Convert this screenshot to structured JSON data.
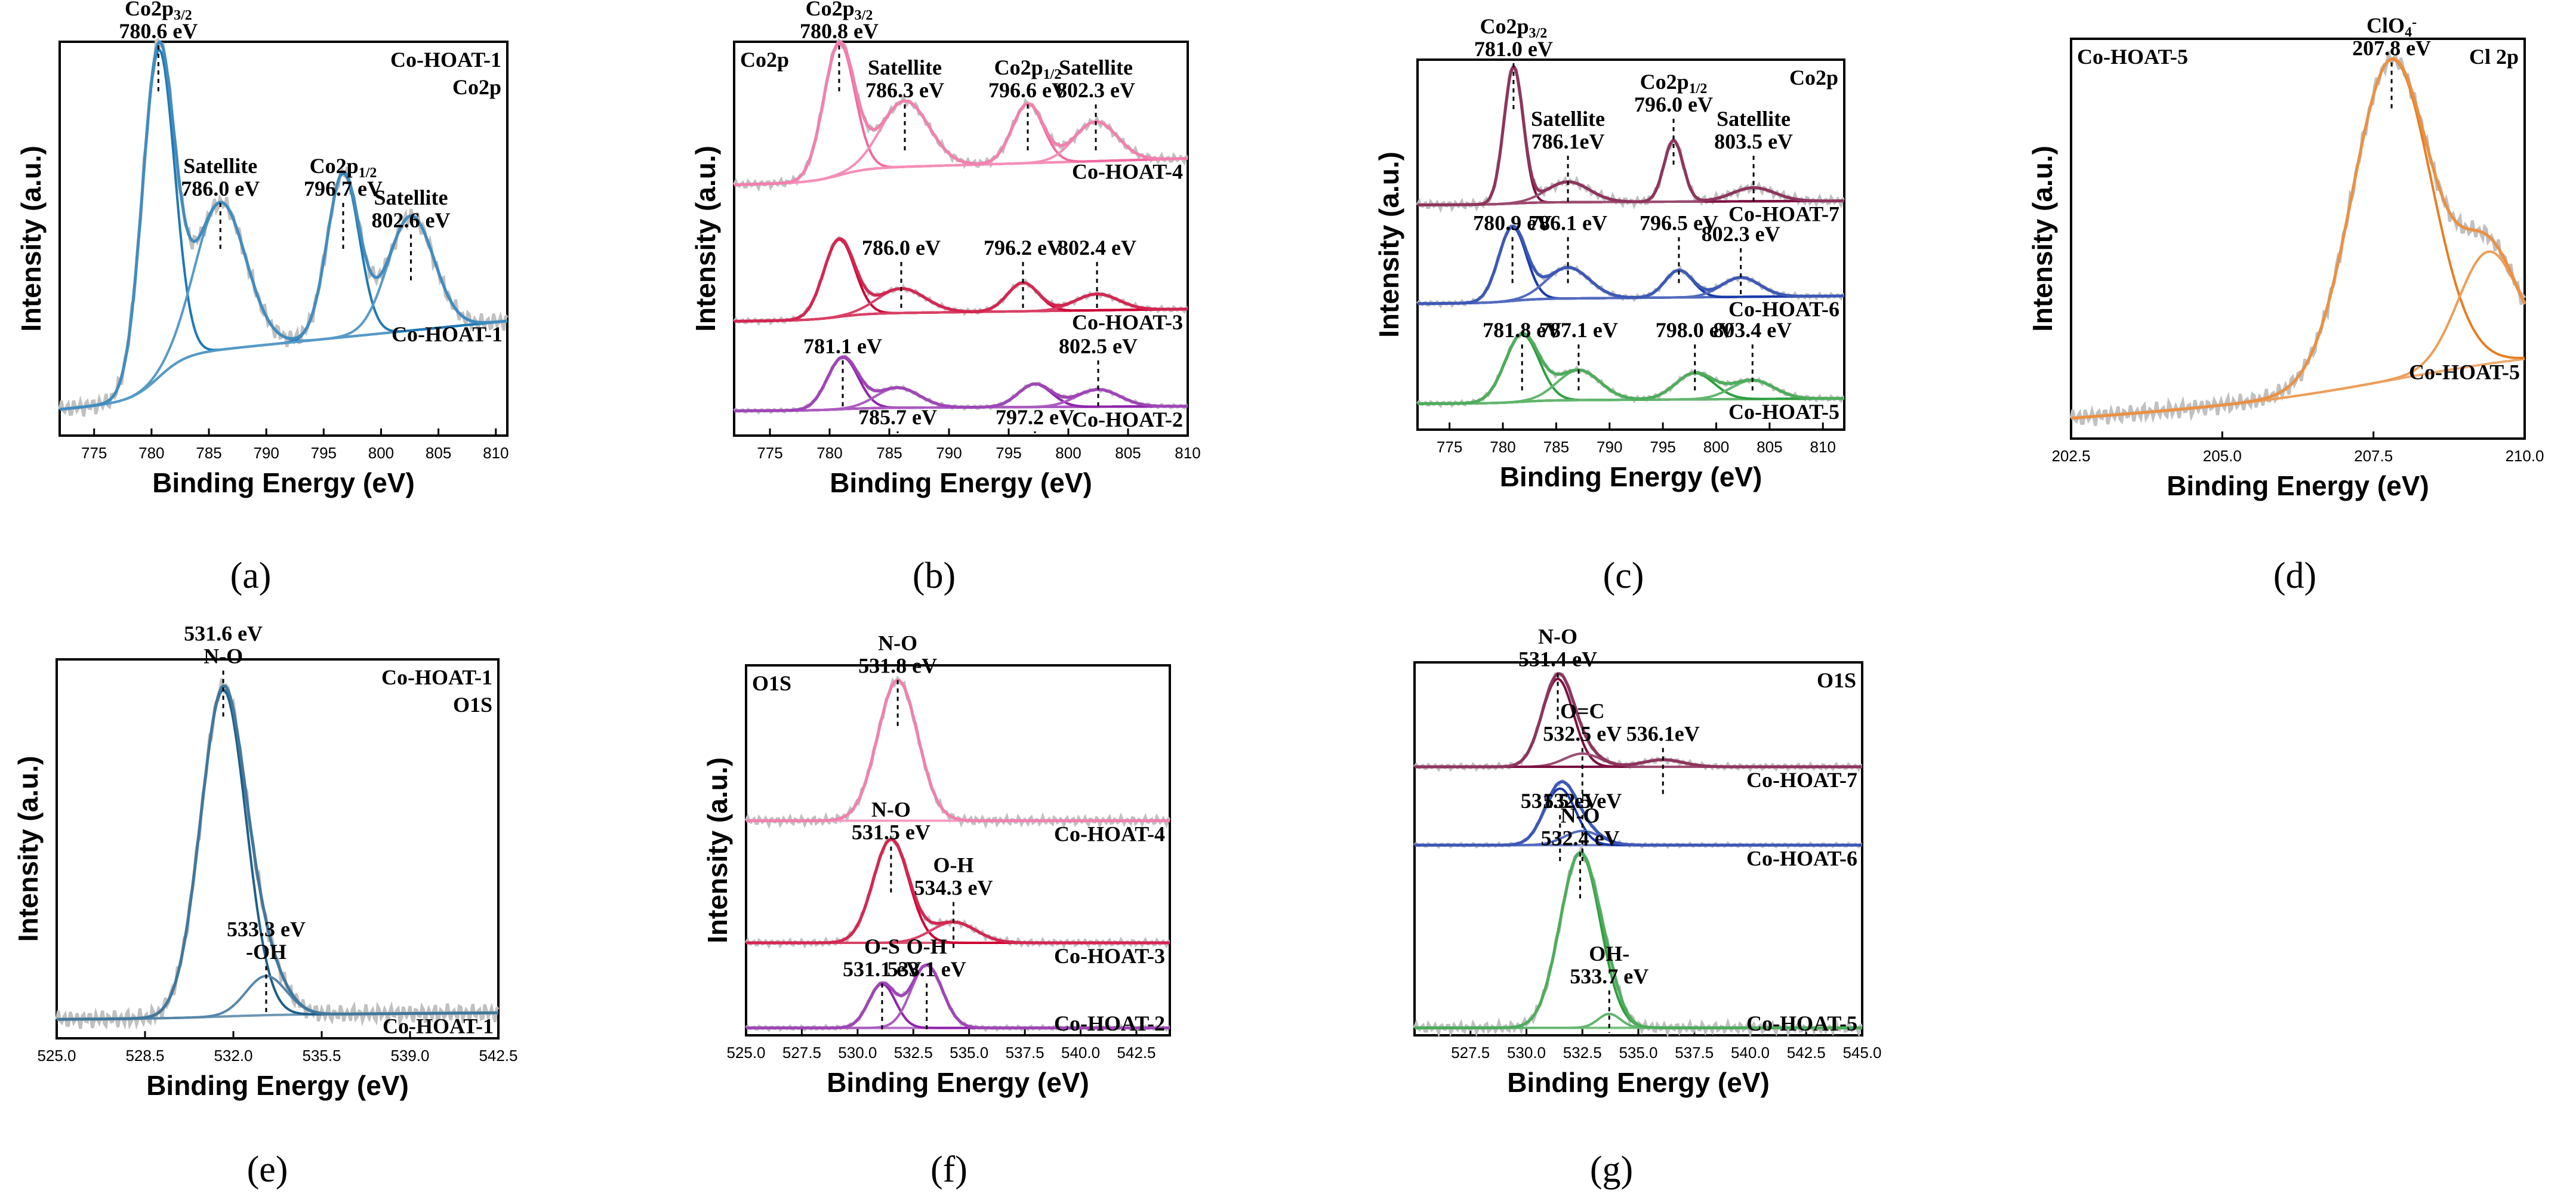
{
  "chart_data": [
    {
      "id": "a",
      "panel_label": "(a)",
      "type": "line",
      "title": "Co2p",
      "xlabel": "Binding Energy (eV)",
      "ylabel": "Intensity (a.u.)",
      "xlim": [
        772,
        811
      ],
      "xticks": [
        775,
        780,
        785,
        790,
        795,
        800,
        805,
        810
      ],
      "series": [
        {
          "name": "Co-HOAT-1",
          "color": "#1f78b4",
          "offset": 0,
          "scale": 1,
          "peaks": [
            [
              780.6,
              1.0,
              1.4
            ],
            [
              786.0,
              0.45,
              2.2
            ],
            [
              796.7,
              0.5,
              1.4
            ],
            [
              802.6,
              0.35,
              2.0
            ]
          ],
          "bg": [
            0.08,
            0.35
          ]
        }
      ],
      "annotations": [
        {
          "x": 780.6,
          "html": "Co2p<sub>3/2</sub>",
          "sub": "780.6 eV",
          "level": 1.0
        },
        {
          "x": 786.0,
          "html": "Satellite",
          "sub": "786.0 eV",
          "level": 0.6
        },
        {
          "x": 796.7,
          "html": "Co2p<sub>1/2</sub>",
          "sub": "796.7 eV",
          "level": 0.6
        },
        {
          "x": 802.6,
          "html": "Satellite",
          "sub": "802.6 eV",
          "level": 0.52
        }
      ],
      "labels": [
        {
          "text": "Co-HOAT-1",
          "color": "#1f78b4",
          "pos": "top-right"
        },
        {
          "text": "Co2p",
          "color": "#000000",
          "pos": "top-right-2"
        }
      ]
    },
    {
      "id": "b",
      "panel_label": "(b)",
      "type": "line",
      "title": "Co2p",
      "xlabel": "Binding Energy (eV)",
      "ylabel": "Intensity (a.u.)",
      "xlim": [
        772,
        810
      ],
      "xticks": [
        775,
        780,
        785,
        790,
        795,
        800,
        805,
        810
      ],
      "series": [
        {
          "name": "Co-HOAT-4",
          "color": "#f06aa0",
          "offset": 0.62,
          "scale": 0.38,
          "peaks": [
            [
              780.8,
              1.0,
              1.3
            ],
            [
              786.3,
              0.5,
              2.0
            ],
            [
              796.6,
              0.45,
              1.3
            ],
            [
              802.3,
              0.3,
              1.8
            ]
          ],
          "bg": [
            0.05,
            0.25
          ]
        },
        {
          "name": "Co-HOAT-3",
          "color": "#cc0033",
          "offset": 0.28,
          "scale": 0.22,
          "peaks": [
            [
              780.8,
              0.95,
              1.3
            ],
            [
              786.0,
              0.3,
              2.0
            ],
            [
              796.2,
              0.35,
              1.3
            ],
            [
              802.4,
              0.2,
              1.8
            ]
          ],
          "bg": [
            0.05,
            0.2
          ]
        },
        {
          "name": "Co-HOAT-2",
          "color": "#8e24aa",
          "offset": 0.06,
          "scale": 0.14,
          "peaks": [
            [
              781.1,
              0.9,
              1.3
            ],
            [
              785.7,
              0.35,
              1.8
            ],
            [
              797.2,
              0.4,
              1.4
            ],
            [
              802.5,
              0.3,
              1.8
            ]
          ],
          "bg": [
            0.02,
            0.1
          ]
        }
      ],
      "annotations": [
        {
          "x": 780.8,
          "html": "Co2p<sub>3/2</sub>",
          "sub": "780.8 eV",
          "level": 1.0
        },
        {
          "x": 786.3,
          "html": "Satellite",
          "sub": "786.3 eV",
          "level": 0.85
        },
        {
          "x": 796.6,
          "html": "Co2p<sub>1/2</sub>",
          "sub": "796.6 eV",
          "level": 0.85
        },
        {
          "x": 802.3,
          "html": "Satellite",
          "sub": "802.3 eV",
          "level": 0.85
        },
        {
          "x": 786.0,
          "html": "",
          "sub": "786.0 eV",
          "level": 0.45
        },
        {
          "x": 796.2,
          "html": "",
          "sub": "796.2 eV",
          "level": 0.45
        },
        {
          "x": 802.4,
          "html": "",
          "sub": "802.4 eV",
          "level": 0.45
        },
        {
          "x": 781.1,
          "html": "",
          "sub": "781.1 eV",
          "level": 0.2
        },
        {
          "x": 785.7,
          "html": "",
          "sub": "785.7 eV",
          "level": 0.02
        },
        {
          "x": 797.2,
          "html": "",
          "sub": "797.2 eV",
          "level": 0.02
        },
        {
          "x": 802.5,
          "html": "",
          "sub": "802.5 eV",
          "level": 0.2
        }
      ],
      "labels": [
        {
          "text": "Co2p",
          "color": "#000000",
          "pos": "top-left"
        }
      ]
    },
    {
      "id": "c",
      "panel_label": "(c)",
      "type": "line",
      "title": "Co2p",
      "xlabel": "Binding Energy (eV)",
      "ylabel": "Intensity (a.u.)",
      "xlim": [
        772,
        812
      ],
      "xticks": [
        775,
        780,
        785,
        790,
        795,
        800,
        805,
        810
      ],
      "series": [
        {
          "name": "Co-HOAT-7",
          "color": "#7a1040",
          "offset": 0.6,
          "scale": 0.38,
          "peaks": [
            [
              781.0,
              1.0,
              0.9
            ],
            [
              786.1,
              0.15,
              2.0
            ],
            [
              796.0,
              0.45,
              0.9
            ],
            [
              803.5,
              0.1,
              2.0
            ]
          ],
          "bg": [
            0.02,
            0.05
          ]
        },
        {
          "name": "Co-HOAT-6",
          "color": "#1a3aaa",
          "offset": 0.33,
          "scale": 0.22,
          "peaks": [
            [
              780.9,
              0.95,
              1.3
            ],
            [
              786.1,
              0.4,
              2.0
            ],
            [
              796.5,
              0.35,
              1.3
            ],
            [
              802.3,
              0.25,
              1.8
            ]
          ],
          "bg": [
            0.05,
            0.15
          ]
        },
        {
          "name": "Co-HOAT-5",
          "color": "#2e9e3e",
          "offset": 0.06,
          "scale": 0.2,
          "peaks": [
            [
              781.8,
              0.9,
              1.6
            ],
            [
              787.1,
              0.4,
              2.0
            ],
            [
              798.0,
              0.35,
              1.8
            ],
            [
              803.4,
              0.25,
              2.0
            ]
          ],
          "bg": [
            0.05,
            0.12
          ]
        }
      ],
      "annotations": [
        {
          "x": 781.0,
          "html": "Co2p<sub>3/2</sub>",
          "sub": "781.0 eV",
          "level": 1.0
        },
        {
          "x": 786.1,
          "html": "Satellite",
          "sub": "786.1eV",
          "level": 0.75
        },
        {
          "x": 796.0,
          "html": "Co2p<sub>1/2</sub>",
          "sub": "796.0 eV",
          "level": 0.85
        },
        {
          "x": 803.5,
          "html": "Satellite",
          "sub": "803.5 eV",
          "level": 0.75
        },
        {
          "x": 780.9,
          "html": "",
          "sub": "780.9 eV",
          "level": 0.53
        },
        {
          "x": 786.1,
          "html": "",
          "sub": "786.1 eV",
          "level": 0.53
        },
        {
          "x": 796.5,
          "html": "",
          "sub": "796.5 eV",
          "level": 0.53
        },
        {
          "x": 802.3,
          "html": "",
          "sub": "802.3 eV",
          "level": 0.5
        },
        {
          "x": 781.8,
          "html": "",
          "sub": "781.8 eV",
          "level": 0.24
        },
        {
          "x": 787.1,
          "html": "",
          "sub": "787.1 eV",
          "level": 0.24
        },
        {
          "x": 798.0,
          "html": "",
          "sub": "798.0 eV",
          "level": 0.24
        },
        {
          "x": 803.4,
          "html": "",
          "sub": "803.4 eV",
          "level": 0.24
        }
      ],
      "labels": [
        {
          "text": "Co2p",
          "color": "#000000",
          "pos": "top-right"
        }
      ]
    },
    {
      "id": "d",
      "panel_label": "(d)",
      "type": "line",
      "title": "Cl 2p",
      "xlabel": "Binding Energy (eV)",
      "ylabel": "Intensity (a.u.)",
      "xlim": [
        202.5,
        210.0
      ],
      "xticks": [
        202.5,
        205.0,
        207.5,
        210.0
      ],
      "series": [
        {
          "name": "Co-HOAT-5",
          "color": "#e67e22",
          "offset": 0.05,
          "scale": 0.9,
          "peaks": [
            [
              207.8,
              1.0,
              0.65
            ],
            [
              209.4,
              0.35,
              0.5
            ]
          ],
          "bg": [
            0.0,
            0.2
          ]
        }
      ],
      "annotations": [
        {
          "x": 207.8,
          "html": "ClO<sub>4</sub><sup>-</sup>",
          "sub": "207.8 eV",
          "level": 0.95
        }
      ],
      "labels": [
        {
          "text": "Co-HOAT-5",
          "color": "#1a8c1a",
          "pos": "top-left"
        },
        {
          "text": "Cl 2p",
          "color": "#000000",
          "pos": "top-right"
        }
      ]
    },
    {
      "id": "e",
      "panel_label": "(e)",
      "type": "line",
      "title": "O1S",
      "xlabel": "Binding Energy (eV)",
      "ylabel": "Intensity (a.u.)",
      "xlim": [
        525.0,
        542.5
      ],
      "xticks": [
        525.0,
        528.5,
        532.0,
        535.5,
        539.0,
        542.5
      ],
      "series": [
        {
          "name": "Co-HOAT-1",
          "color": "#1f5f8b",
          "offset": 0.05,
          "scale": 0.88,
          "peaks": [
            [
              531.6,
              1.0,
              0.9
            ],
            [
              533.3,
              0.12,
              0.8
            ]
          ],
          "bg": [
            0.0,
            0.02
          ]
        }
      ],
      "annotations": [
        {
          "x": 531.6,
          "html": "531.6 eV",
          "sub": "N-O",
          "level": 0.98
        },
        {
          "x": 533.3,
          "html": "533.3 eV",
          "sub": "-OH",
          "level": 0.2
        }
      ],
      "labels": [
        {
          "text": "Co-HOAT-1",
          "color": "#1f78b4",
          "pos": "top-right"
        },
        {
          "text": "O1S",
          "color": "#000000",
          "pos": "top-right-2"
        }
      ]
    },
    {
      "id": "f",
      "panel_label": "(f)",
      "type": "line",
      "title": "O1S",
      "xlabel": "Binding Energy (eV)",
      "ylabel": "Intensity (a.u.)",
      "xlim": [
        525.0,
        544.0
      ],
      "xticks": [
        525.0,
        527.5,
        530.0,
        532.5,
        535.0,
        537.5,
        540.0,
        542.5
      ],
      "series": [
        {
          "name": "Co-HOAT-4",
          "color": "#f06aa0",
          "offset": 0.58,
          "scale": 0.38,
          "peaks": [
            [
              531.8,
              1.0,
              0.9
            ]
          ],
          "bg": [
            0.0,
            0.0
          ]
        },
        {
          "name": "Co-HOAT-3",
          "color": "#cc0033",
          "offset": 0.25,
          "scale": 0.28,
          "peaks": [
            [
              531.5,
              1.0,
              0.8
            ],
            [
              534.3,
              0.2,
              1.0
            ]
          ],
          "bg": [
            0.0,
            0.0
          ]
        },
        {
          "name": "Co-HOAT-2",
          "color": "#8e24aa",
          "offset": 0.02,
          "scale": 0.17,
          "peaks": [
            [
              531.1,
              0.7,
              0.6
            ],
            [
              533.1,
              1.0,
              0.7
            ]
          ],
          "bg": [
            0.0,
            0.0
          ]
        }
      ],
      "annotations": [
        {
          "x": 531.8,
          "html": "N-O",
          "sub": "531.8 eV",
          "level": 0.97
        },
        {
          "x": 531.5,
          "html": "N-O",
          "sub": "531.5 eV",
          "level": 0.52
        },
        {
          "x": 534.3,
          "html": "O-H",
          "sub": "534.3 eV",
          "level": 0.37
        },
        {
          "x": 531.1,
          "html": "O-S",
          "sub": "531.1 eV",
          "level": 0.15
        },
        {
          "x": 533.1,
          "html": "O-H",
          "sub": "533.1 eV",
          "level": 0.15
        }
      ],
      "labels": [
        {
          "text": "O1S",
          "color": "#000000",
          "pos": "top-left"
        }
      ]
    },
    {
      "id": "g",
      "panel_label": "(g)",
      "type": "line",
      "title": "O1S",
      "xlabel": "Binding Energy (eV)",
      "ylabel": "",
      "xlim": [
        525.0,
        545.0
      ],
      "xticks": [
        527.5,
        530.0,
        532.5,
        535.0,
        537.5,
        540.0,
        542.5,
        545.0
      ],
      "series": [
        {
          "name": "Co-HOAT-7",
          "color": "#7a1040",
          "offset": 0.72,
          "scale": 0.25,
          "peaks": [
            [
              531.4,
              1.0,
              0.7
            ],
            [
              532.5,
              0.15,
              0.8
            ],
            [
              536.1,
              0.08,
              0.9
            ]
          ],
          "bg": [
            0.0,
            0.0
          ]
        },
        {
          "name": "Co-HOAT-6",
          "color": "#1a3aaa",
          "offset": 0.51,
          "scale": 0.17,
          "peaks": [
            [
              531.5,
              1.0,
              0.7
            ],
            [
              532.5,
              0.25,
              0.8
            ]
          ],
          "bg": [
            0.0,
            0.0
          ]
        },
        {
          "name": "Co-HOAT-5",
          "color": "#2e9e3e",
          "offset": 0.02,
          "scale": 0.47,
          "peaks": [
            [
              532.4,
              1.0,
              0.9
            ],
            [
              533.7,
              0.08,
              0.5
            ]
          ],
          "bg": [
            0.0,
            0.0
          ]
        }
      ],
      "annotations": [
        {
          "x": 531.4,
          "html": "N-O",
          "sub": "531.4 eV",
          "level": 0.98
        },
        {
          "x": 532.5,
          "html": "O=C",
          "sub": "532.5 eV",
          "level": 0.78
        },
        {
          "x": 536.1,
          "html": "",
          "sub": "536.1eV",
          "level": 0.78
        },
        {
          "x": 531.5,
          "html": "",
          "sub": "531.5 eV",
          "level": 0.6
        },
        {
          "x": 532.5,
          "html": "",
          "sub": "532.5 eV",
          "level": 0.6
        },
        {
          "x": 532.4,
          "html": "N-O",
          "sub": "532.4 eV",
          "level": 0.5
        },
        {
          "x": 533.7,
          "html": "OH-",
          "sub": "533.7 eV",
          "level": 0.13
        }
      ],
      "labels": [
        {
          "text": "O1S",
          "color": "#000000",
          "pos": "top-right"
        }
      ]
    }
  ]
}
